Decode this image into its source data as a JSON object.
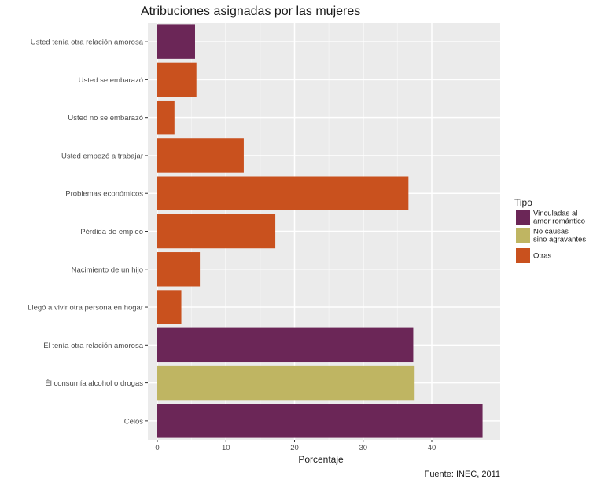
{
  "chart_data": {
    "type": "bar",
    "orientation": "horizontal",
    "title": "Atribuciones asignadas por las mujeres",
    "xlabel": "Porcentaje",
    "ylabel": "",
    "xlim": [
      0,
      48.5
    ],
    "x_ticks": [
      0,
      10,
      20,
      30,
      40
    ],
    "grid": true,
    "legend_position": "right",
    "caption": "Fuente: INEC, 2011",
    "legend": {
      "title": "Tipo",
      "items": [
        {
          "key": "vinculadas",
          "lines": [
            "Vinculadas al",
            "amor romántico"
          ],
          "color": "#6b2657"
        },
        {
          "key": "no_causas",
          "lines": [
            "No causas",
            "sino agravantes"
          ],
          "color": "#bfb562"
        },
        {
          "key": "otras",
          "lines": [
            "Otras"
          ],
          "color": "#c9511e"
        }
      ]
    },
    "bars": [
      {
        "category": "Usted tenía otra relación amorosa",
        "value": 5.5,
        "tipo": "vinculadas"
      },
      {
        "category": "Usted se embarazó",
        "value": 5.7,
        "tipo": "otras"
      },
      {
        "category": "Usted no se embarazó",
        "value": 2.5,
        "tipo": "otras"
      },
      {
        "category": "Usted empezó a trabajar",
        "value": 12.6,
        "tipo": "otras"
      },
      {
        "category": "Problemas económicos",
        "value": 36.6,
        "tipo": "otras"
      },
      {
        "category": "Pérdida de empleo",
        "value": 17.2,
        "tipo": "otras"
      },
      {
        "category": "Nacimiento de un hijo",
        "value": 6.2,
        "tipo": "otras"
      },
      {
        "category": "Llegó a vivir otra persona en hogar",
        "value": 3.5,
        "tipo": "otras"
      },
      {
        "category": "Él tenía otra relación amorosa",
        "value": 37.3,
        "tipo": "vinculadas"
      },
      {
        "category": "Él consumía alcohol o drogas",
        "value": 37.5,
        "tipo": "no_causas"
      },
      {
        "category": "Celos",
        "value": 47.4,
        "tipo": "vinculadas"
      }
    ]
  }
}
